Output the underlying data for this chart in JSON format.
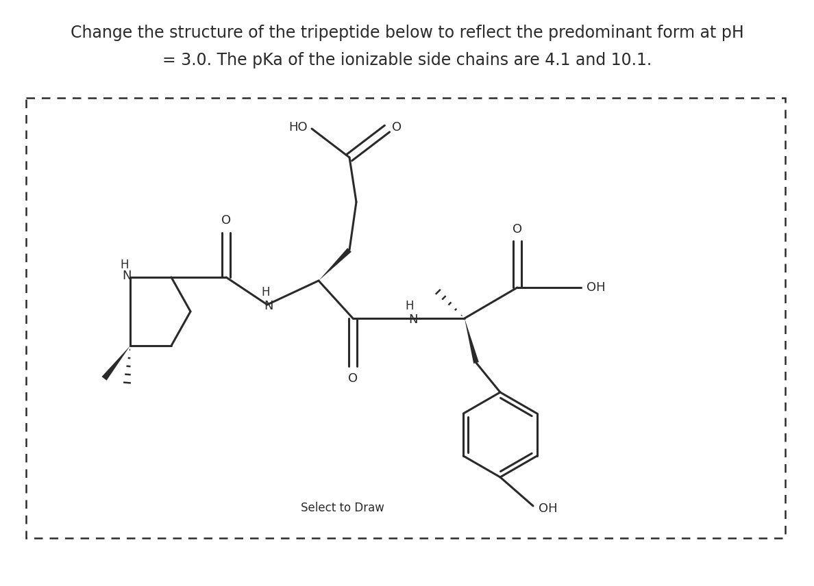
{
  "title_line1": "Change the structure of the tripeptide below to reflect the predominant form at pH",
  "title_line2": "= 3.0. The pKa of the ionizable side chains are 4.1 and 10.1.",
  "select_to_draw": "Select to Draw",
  "bg_color": "#ffffff",
  "line_color": "#2a2a2a",
  "text_color": "#2a2a2a",
  "title_fontsize": 17,
  "label_fontsize": 13,
  "select_fontsize": 12
}
